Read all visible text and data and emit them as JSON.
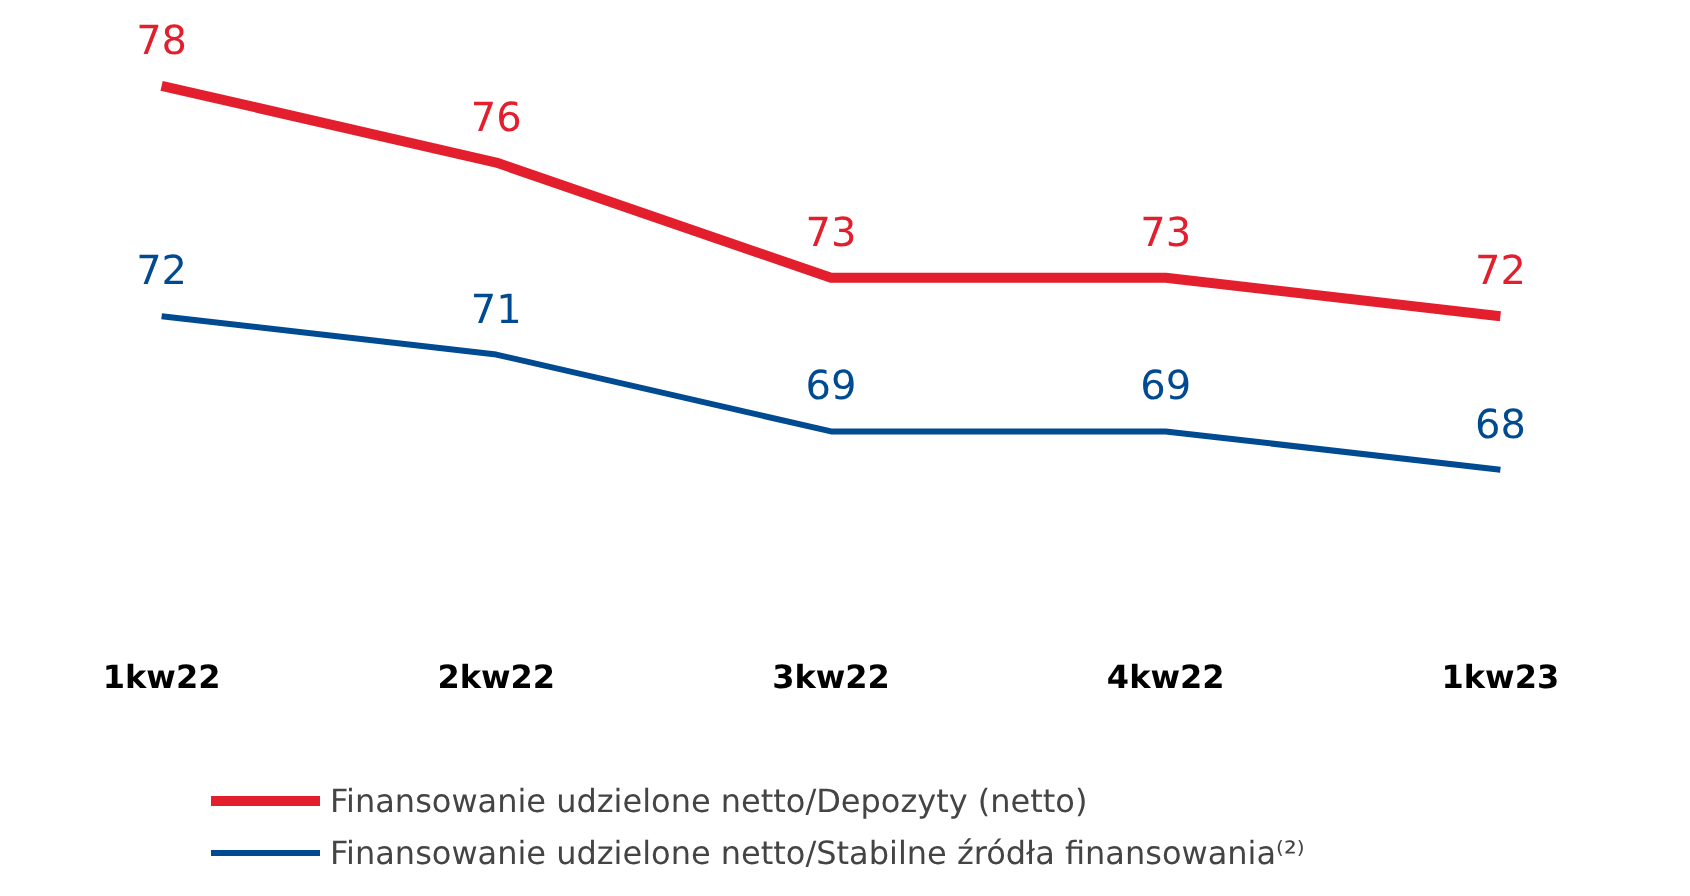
{
  "chart_data": {
    "type": "line",
    "categories": [
      "1kw22",
      "2kw22",
      "3kw22",
      "4kw22",
      "1kw23"
    ],
    "series": [
      {
        "name": "Finansowanie udzielone netto/Depozyty (netto)",
        "color": "#e31e2d",
        "values": [
          78,
          76,
          73,
          73,
          72
        ]
      },
      {
        "name": "Finansowanie udzielone netto/Stabilne źródła finansowania⁽²⁾",
        "color": "#004a91",
        "values": [
          72,
          71,
          69,
          69,
          68
        ]
      }
    ],
    "data_labels": true,
    "legend": "bottom",
    "grid": false,
    "marker": "none",
    "line_style": "solid"
  }
}
